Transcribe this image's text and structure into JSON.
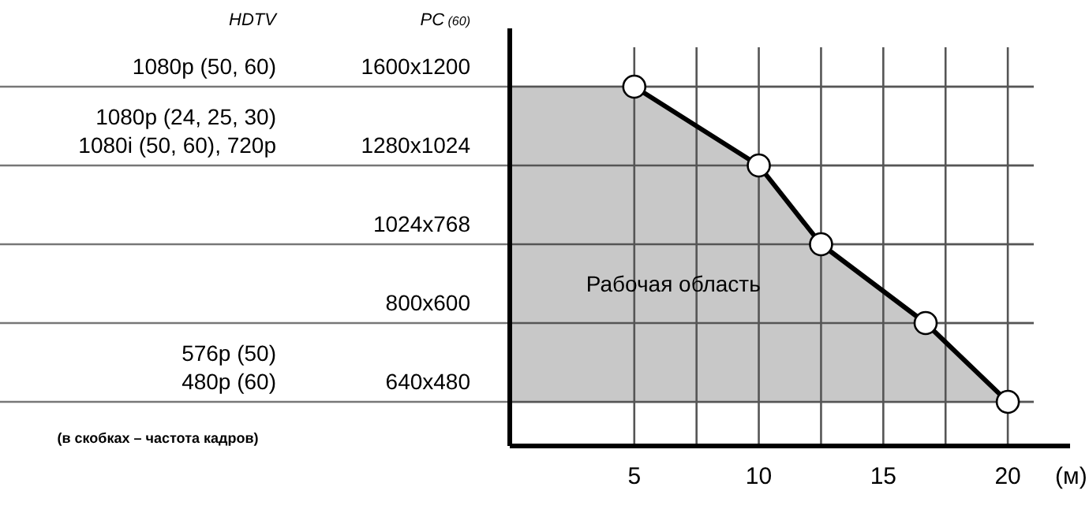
{
  "chart_data": {
    "type": "area",
    "orientation": "horizontal",
    "ylabel": "PC (60)",
    "y2label": "HDTV",
    "xlabel": "(м)",
    "categories": [
      "1600x1200",
      "1280x1024",
      "1024x768",
      "800x600",
      "640x480"
    ],
    "y2_categories": [
      "1080p (50, 60)",
      "1080p (24, 25, 30)\n1080i (50, 60), 720p",
      null,
      null,
      "576p (50)\n480p (60)"
    ],
    "series": [
      {
        "name": "Рабочая область",
        "color": "#c8c8c8",
        "values": [
          5,
          10,
          12.5,
          16.7,
          20
        ]
      }
    ],
    "xlim": [
      0,
      22.5
    ],
    "xticks": [
      5,
      {
        "value": 7.5,
        "label": null
      },
      10,
      {
        "value": 12.5,
        "label": null
      },
      15,
      {
        "value": 17.5,
        "label": null
      },
      20
    ],
    "grid": true,
    "marker": "circle",
    "line_style": "solid",
    "annotations": [
      "(в скобках – частота кадров)"
    ]
  }
}
